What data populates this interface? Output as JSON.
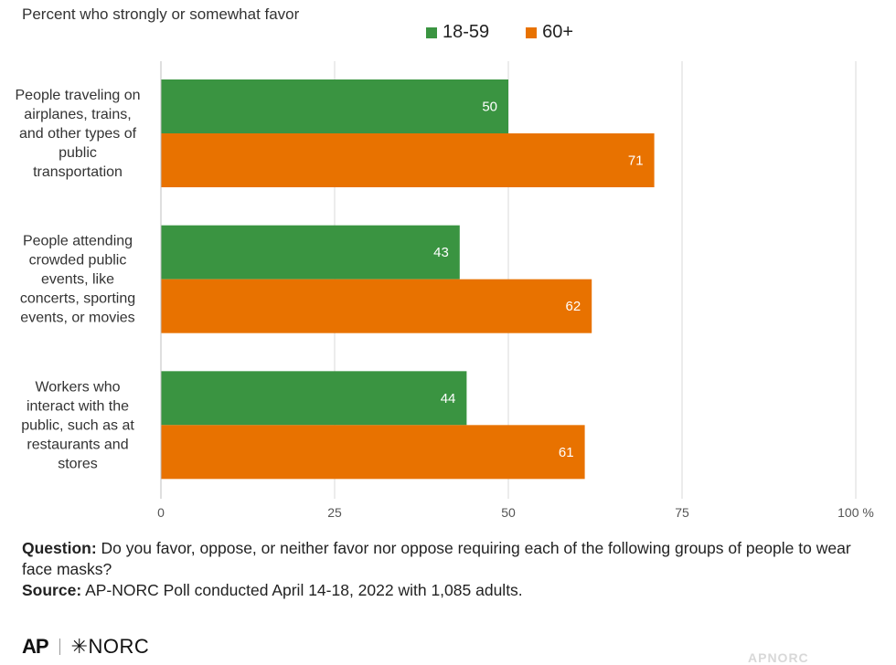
{
  "subtitle": "Percent who strongly or somewhat favor",
  "legend": [
    {
      "name": "18-59",
      "color": "#3a9441"
    },
    {
      "name": "60+",
      "color": "#e87200"
    }
  ],
  "chart_data": {
    "type": "bar",
    "orientation": "horizontal",
    "categories": [
      [
        "People traveling on",
        "airplanes, trains,",
        "and other types of",
        "public",
        "transportation"
      ],
      [
        "People attending",
        "crowded public",
        "events, like",
        "concerts, sporting",
        "events, or movies"
      ],
      [
        "Workers who",
        "interact with the",
        "public, such as at",
        "restaurants and",
        "stores"
      ]
    ],
    "series": [
      {
        "name": "18-59",
        "color": "#3a9441",
        "values": [
          50,
          43,
          44
        ]
      },
      {
        "name": "60+",
        "color": "#e87200",
        "values": [
          71,
          62,
          61
        ]
      }
    ],
    "xlim": [
      0,
      100
    ],
    "ticks": [
      "0",
      "25",
      "50",
      "75",
      "100 %"
    ],
    "tick_values": [
      0,
      25,
      50,
      75,
      100
    ],
    "grid": true,
    "legend_position": "top-right"
  },
  "footnote": {
    "question_label": "Question:",
    "question_text": "Do you favor, oppose, or neither favor nor oppose requiring each of the following groups of people to wear face masks?",
    "source_label": "Source:",
    "source_text": "AP-NORC Poll conducted April 14-18, 2022 with 1,085 adults."
  },
  "logos": {
    "ap": "AP",
    "norc": "✳NORC",
    "faint": "APNORC"
  }
}
